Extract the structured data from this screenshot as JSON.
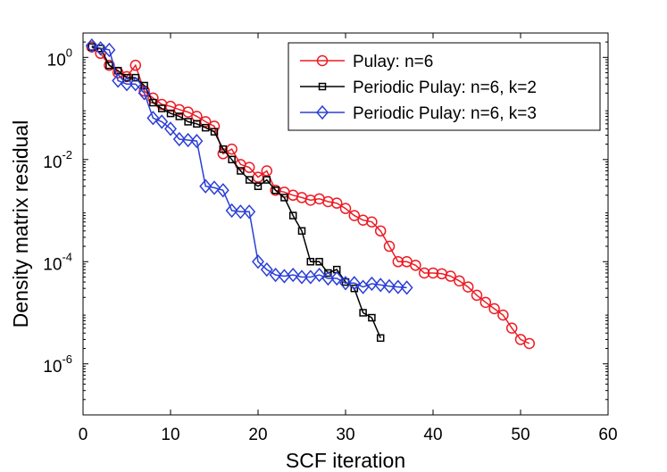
{
  "chart_data": {
    "type": "line",
    "title": "",
    "xlabel": "SCF iteration",
    "ylabel": "Density matrix residual",
    "xlim": [
      0,
      60
    ],
    "ylim": [
      1e-07,
      3
    ],
    "yscale": "log",
    "xticks": [
      0,
      10,
      20,
      30,
      40,
      50,
      60
    ],
    "xtick_labels": [
      "0",
      "10",
      "20",
      "30",
      "40",
      "50",
      "60"
    ],
    "yticks": [
      1e-06,
      0.0001,
      0.01,
      1
    ],
    "ytick_labels": [
      {
        "base": "10",
        "exp": "-6"
      },
      {
        "base": "10",
        "exp": "-4"
      },
      {
        "base": "10",
        "exp": "-2"
      },
      {
        "base": "10",
        "exp": "0"
      }
    ],
    "legend_position": "top-right",
    "series": [
      {
        "name": "Pulay: n=6",
        "color": "#ee1c24",
        "marker": "circle",
        "x": [
          1,
          2,
          3,
          4,
          5,
          6,
          7,
          8,
          9,
          10,
          11,
          12,
          13,
          14,
          15,
          16,
          17,
          18,
          19,
          20,
          21,
          22,
          23,
          24,
          25,
          26,
          27,
          28,
          29,
          30,
          31,
          32,
          33,
          34,
          35,
          36,
          37,
          38,
          39,
          40,
          41,
          42,
          43,
          44,
          45,
          46,
          47,
          48,
          49,
          50,
          51
        ],
        "y": [
          1.6,
          1.2,
          0.7,
          0.5,
          0.42,
          0.7,
          0.22,
          0.16,
          0.12,
          0.11,
          0.095,
          0.085,
          0.07,
          0.055,
          0.045,
          0.013,
          0.016,
          0.008,
          0.007,
          0.0045,
          0.006,
          0.0025,
          0.0023,
          0.002,
          0.0018,
          0.0016,
          0.0017,
          0.0015,
          0.0014,
          0.0011,
          0.0008,
          0.00065,
          0.0006,
          0.0004,
          0.0002,
          0.0001,
          0.0001,
          8.5e-05,
          6e-05,
          6e-05,
          5.8e-05,
          5.2e-05,
          4.2e-05,
          3.2e-05,
          2.2e-05,
          1.6e-05,
          1.2e-05,
          9e-06,
          5e-06,
          3e-06,
          2.5e-06
        ]
      },
      {
        "name": "Periodic Pulay: n=6, k=2",
        "color": "#000000",
        "marker": "square",
        "x": [
          1,
          2,
          3,
          4,
          5,
          6,
          7,
          8,
          9,
          10,
          11,
          12,
          13,
          14,
          15,
          16,
          17,
          18,
          19,
          20,
          21,
          22,
          23,
          24,
          25,
          26,
          27,
          28,
          29,
          30,
          31,
          32,
          33,
          34
        ],
        "y": [
          1.6,
          1.5,
          0.7,
          0.55,
          0.4,
          0.4,
          0.28,
          0.13,
          0.1,
          0.08,
          0.07,
          0.055,
          0.05,
          0.042,
          0.035,
          0.016,
          0.01,
          0.006,
          0.004,
          0.003,
          0.004,
          0.0025,
          0.0018,
          0.0008,
          0.0004,
          0.0001,
          0.0001,
          6e-05,
          7e-05,
          4e-05,
          3e-05,
          1e-05,
          8e-06,
          3.2e-06
        ]
      },
      {
        "name": "Periodic Pulay: n=6, k=3",
        "color": "#2b3fd6",
        "marker": "diamond",
        "x": [
          1,
          2,
          3,
          4,
          5,
          6,
          7,
          8,
          9,
          10,
          11,
          12,
          13,
          14,
          15,
          16,
          17,
          18,
          19,
          20,
          21,
          22,
          23,
          24,
          25,
          26,
          27,
          28,
          29,
          30,
          31,
          32,
          33,
          34,
          35,
          36,
          37
        ],
        "y": [
          1.7,
          1.5,
          1.4,
          0.35,
          0.3,
          0.3,
          0.2,
          0.065,
          0.055,
          0.04,
          0.025,
          0.024,
          0.023,
          0.003,
          0.0028,
          0.0025,
          0.001,
          0.00095,
          0.00095,
          0.0001,
          7e-05,
          5.5e-05,
          5.2e-05,
          5.5e-05,
          5e-05,
          5e-05,
          5.5e-05,
          4.7e-05,
          4.7e-05,
          3.8e-05,
          3.8e-05,
          3.2e-05,
          3.7e-05,
          3.5e-05,
          3.3e-05,
          3.2e-05,
          3.1e-05
        ]
      }
    ]
  }
}
